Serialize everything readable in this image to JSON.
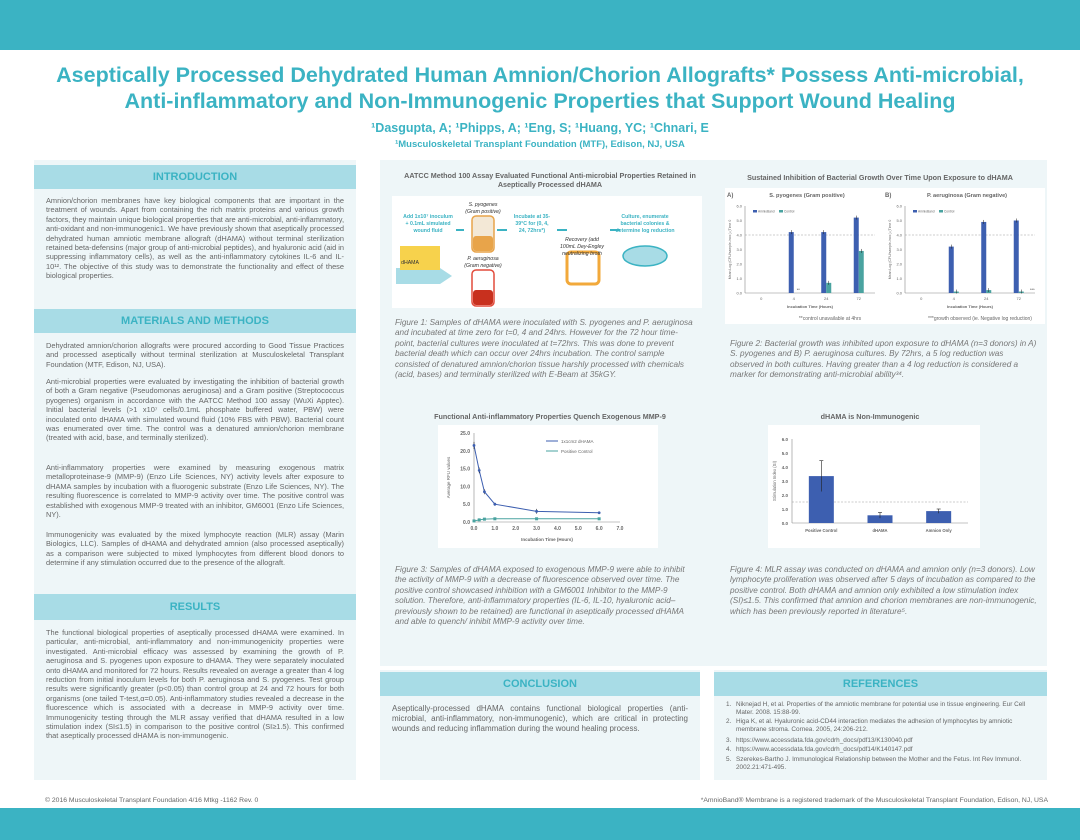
{
  "header": {
    "title_line1": "Aseptically Processed Dehydrated Human Amnion/Chorion Allografts* Possess Anti-microbial,",
    "title_line2": "Anti-inflammatory and Non-Immunogenic Properties that Support Wound Healing",
    "authors": "¹Dasgupta, A; ¹Phipps, A; ¹Eng, S; ¹Huang, YC; ¹Chnari, E",
    "affiliation": "¹Musculoskeletal Transplant Foundation (MTF), Edison, NJ, USA"
  },
  "intro": {
    "heading": "INTRODUCTION",
    "text": "Amnion/chorion membranes have key biological components that are important in the treatment of wounds. Apart from containing the rich matrix proteins and various growth factors, they maintain unique biological properties that are anti-microbial, anti-inflammatory, anti-oxidant and non-immunogenic1. We have previously shown that aseptically processed dehydrated human amniotic membrane allograft (dHAMA) without terminal sterilization retained beta-defensins (major group of anti-microbial peptides), and hyaluronic acid (aid in suppressing inflammatory cells), as well as the anti-inflammatory cytokines IL-6 and IL-10¹². The objective of this study was to demonstrate the functionality and effect of these biological properties."
  },
  "methods": {
    "heading": "MATERIALS AND METHODS",
    "p1": "Dehydrated amnion/chorion allografts were procured according to Good Tissue Practices and processed aseptically without terminal sterilization at Musculoskeletal Transplant Foundation (MTF, Edison, NJ, USA).",
    "p2": "Anti-microbial properties were evaluated by investigating the inhibition of bacterial growth of both a Gram negative (Pseudomonas aeruginosa) and a Gram positive (Streptococcus pyogenes) organism in accordance with the AATCC Method 100 assay (WuXi Apptec). Initial bacterial levels (>1 x10⁷ cells/0.1mL phosphate buffered water, PBW) were inoculated onto dHAMA with simulated wound fluid (10% FBS with PBW). Bacterial count was enumerated over time. The control was a denatured amnion/chorion membrane (treated with acid, base, and terminally sterilized).",
    "p3": "Anti-inflammatory properties were examined by measuring exogenous matrix metalloproteinase-9 (MMP-9) (Enzo Life Sciences, NY) activity levels after exposure to dHAMA samples by incubation with a fluorogenic substrate (Enzo Life Sciences, NY). The resulting fluorescence is correlated to MMP-9 activity over time. The positive control was established with exogenous MMP-9 treated with an inhibitor, GM6001 (Enzo Life Sciences, NY).",
    "p4": "Immunogenicity was evaluated by the mixed lymphocyte reaction (MLR) assay (Marin Biologics, LLC). Samples of dHAMA and dehydrated amnion (also processed aseptically) as a comparison were subjected to mixed lymphocytes from different blood donors to determine if any stimulation occurred due to the presence of the allograft."
  },
  "results": {
    "heading": "RESULTS",
    "text": "The functional biological properties of aseptically processed dHAMA were examined. In particular, anti-microbial, anti-inflammatory and non-immunogenicity properties were investigated. Anti-microbial efficacy was assessed by examining the growth of P. aeruginosa and S. pyogenes upon exposure to dHAMA. They were separately inoculated onto dHAMA and monitored for 72 hours. Results revealed on average a greater than 4 log reduction from initial inoculum levels for both P. aeruginosa and S. pyogenes. Test group results were significantly greater (p<0.05) than control group at 24 and 72 hours for both organisms (one tailed T-test,α=0.05). Anti-inflammatory studies revealed a decrease in the fluorescence which is associated with a decrease in MMP-9 activity over time. Immunogenicity testing through the MLR assay verified that dHAMA resulted in a low stimulation index (SI≤1.5) in comparison to the positive control (SI≥1.5). This confirmed that aseptically processed dHAMA is non-immunogenic."
  },
  "fig1": {
    "title": "AATCC Method 100 Assay Evaluated Functional Anti-microbial Properties Retained in Aseptically Processed dHAMA",
    "step1": "Add 1x10⁷ inoculum + 0.1mL simulated wound fluid",
    "dhama": "dHAMA",
    "tube1": "S. pyogenes (Gram positive)",
    "tube2": "P. aeruginosa (Gram negative)",
    "step2": "Incubate at 35-39°C for (0, 4, 24, 72hrs*)",
    "step3": "Recovery (add 100mL Dey-Engley neutralizing broth",
    "step4": "Culture, enumerate bacterial colonies & determine log reduction",
    "caption": "Figure 1: Samples of dHAMA were inoculated with S. pyogenes and P. aeruginosa and incubated at time zero for t=0, 4 and 24hrs. However for the 72 hour time-point, bacterial cultures were inoculated at t=72hrs. This was done to prevent bacterial death which can occur over 24hrs incubation. The control sample consisted of denatured amnion/chorion tissue harshly processed with chemicals (acid, bases) and terminally sterilized with E-Beam at 35kGY."
  },
  "fig2": {
    "title": "Sustained Inhibition of Bacterial Growth Over Time Upon Exposure to dHAMA",
    "panelA_letter": "A)",
    "panelB_letter": "B)",
    "panelA_title": "S. pyogenes (Gram positive)",
    "panelB_title": "P. aeruginosa (Gram negative)",
    "ylabel": "Mean Log (CFU/sample-inoc.) (Time 0",
    "xlabel": "Incubation Time (Hours)",
    "note_left": "**control unavailable at 4hrs",
    "note_right": "***growth observed (ie. Negative log reduction)",
    "caption": "Figure 2: Bacterial growth was inhibited upon exposure to dHAMA (n=3 donors) in A) S. pyogenes and B) P. aeruginosa cultures. By 72hrs, a 5 log reduction was observed in both cultures. Having greater than a 4 log reduction is considered a marker for demonstrating anti-microbial ability³⁴."
  },
  "fig3": {
    "title": "Functional Anti-inflammatory Properties Quench Exogenous MMP-9",
    "ylabel": "Average RFU values",
    "xlabel": "Incubation Time (Hours)",
    "caption": "Figure 3: Samples of dHAMA exposed to exogenous MMP-9 were able to inhibit the activity of MMP-9 with a decrease of fluorescence observed over time. The positive control showcased inhibition with a GM6001 Inhibitor to the MMP-9 solution. Therefore, anti-inflammatory properties (IL-6, IL-10, hyaluronic acid– previously shown to be retained) are functional in aseptically processed dHAMA and able to quench/ inhibit MMP-9 activity over time."
  },
  "fig4": {
    "title": "dHAMA is Non-Immunogenic",
    "ylabel": "Stimulation Index (SI)",
    "caption": "Figure 4: MLR assay was conducted on dHAMA and amnion only (n=3 donors). Low lymphocyte proliferation was observed after 5 days of incubation as compared to the positive control. Both dHAMA and amnion only exhibited a low stimulation index (SI)≤1.5. This confirmed that amnion and chorion membranes are non-immunogenic, which has been previously reported in literature⁵."
  },
  "conclusion": {
    "heading": "CONCLUSION",
    "text": "Aseptically-processed dHAMA contains functional biological properties (anti-microbial, anti-inflammatory, non-immunogenic), which are critical in protecting wounds and reducing inflammation during the wound healing process."
  },
  "references": {
    "heading": "REFERENCES",
    "items": [
      "Niknejad H, et al. Properties of the amniotic membrane for potential use in tissue engineering. Eur Cell Mater. 2008. 15:88-99.",
      "Higa K, et al. Hyaluronic acid-CD44 interaction mediates the adhesion of lymphocytes by amniotic membrane stroma. Cornea. 2005, 24:206-212.",
      "https://www.accessdata.fda.gov/cdrh_docs/pdf13/K130040.pdf",
      "https://www.accessdata.fda.gov/cdrh_docs/pdf14/K140147.pdf",
      "Szerekes-Bartho J. Immunological Relationship between the Mother and the Fetus. Int Rev Immunol. 2002.21:471-495."
    ]
  },
  "footer": {
    "left": "© 2016 Musculoskeletal Transplant Foundation 4/16 Mtkg -1162 Rev. 0",
    "right": "*AmnioBand® Membrane is a registered trademark of the Musculoskeletal Transplant Foundation, Edison, NJ, USA"
  },
  "colors": {
    "accent": "#3bb3c3",
    "section_header": "#a8dce6",
    "panel": "#eef6f8",
    "series_blue": "#3d5fb0",
    "series_teal": "#4aa3a0"
  },
  "chart_data": [
    {
      "type": "bar",
      "title": "S. pyogenes (Gram positive)",
      "xlabel": "Incubation Time (Hours)",
      "ylabel": "Mean Log (CFU/sample-inoc.) (Time 0",
      "categories": [
        "0",
        "4",
        "24",
        "72"
      ],
      "series": [
        {
          "name": "AmnioBand",
          "values": [
            0,
            4.2,
            4.2,
            5.2
          ]
        },
        {
          "name": "Control",
          "values": [
            0,
            0,
            0.7,
            2.9
          ]
        }
      ],
      "ylim": [
        0,
        6
      ],
      "yticks": [
        "0.0",
        "1.0",
        "2.0",
        "3.0",
        "4.0",
        "5.0",
        "6.0"
      ],
      "annotations": [
        "**"
      ]
    },
    {
      "type": "bar",
      "title": "P. aeruginosa (Gram negative)",
      "xlabel": "Incubation Time (Hours)",
      "ylabel": "Mean Log (CFU/sample-inoc.) (Time 0",
      "categories": [
        "0",
        "4",
        "24",
        "72"
      ],
      "series": [
        {
          "name": "AmnioBand",
          "values": [
            0,
            3.2,
            4.9,
            5.0
          ]
        },
        {
          "name": "Control",
          "values": [
            0,
            0.1,
            0.2,
            0.1
          ]
        }
      ],
      "ylim": [
        0,
        6
      ],
      "yticks": [
        "0.0",
        "1.0",
        "2.0",
        "3.0",
        "4.0",
        "5.0",
        "6.0"
      ],
      "annotations": [
        "***"
      ]
    },
    {
      "type": "line",
      "title": "Functional Anti-inflammatory Properties Quench Exogenous MMP-9",
      "xlabel": "Incubation Time (Hours)",
      "ylabel": "Average RFU values",
      "xticks": [
        "0.0",
        "1.0",
        "2.0",
        "3.0",
        "4.0",
        "5.0",
        "6.0",
        "7.0"
      ],
      "yticks": [
        "0.0",
        "5.0",
        "10.0",
        "15.0",
        "20.0",
        "25.0"
      ],
      "xlim": [
        0,
        7
      ],
      "ylim": [
        0,
        25
      ],
      "series": [
        {
          "name": "1x1cm2 dHAMA",
          "x": [
            0,
            0.25,
            0.5,
            1,
            3,
            6
          ],
          "y": [
            21.5,
            14.5,
            8.5,
            5.0,
            3.0,
            2.6
          ],
          "err": [
            1.0,
            0.8,
            0.7,
            0.4,
            0.7,
            0.3
          ]
        },
        {
          "name": "Positive Control",
          "x": [
            0,
            0.25,
            0.5,
            1,
            3,
            6
          ],
          "y": [
            0.3,
            0.6,
            0.8,
            0.9,
            0.9,
            0.9
          ],
          "err": [
            0.2,
            0.2,
            0.2,
            0.3,
            0.2,
            0.2
          ]
        }
      ]
    },
    {
      "type": "bar",
      "title": "dHAMA is Non-Immunogenic",
      "ylabel": "Stimulation Index (SI)",
      "categories": [
        "Positive Control",
        "dHAMA",
        "Amnion Only"
      ],
      "values": [
        3.35,
        0.55,
        0.85
      ],
      "err": [
        1.1,
        0.2,
        0.15
      ],
      "ylim": [
        0,
        6
      ],
      "yticks": [
        "0.0",
        "1.0",
        "2.0",
        "3.0",
        "4.0",
        "5.0",
        "6.0"
      ],
      "reference_line": 1.5
    }
  ]
}
